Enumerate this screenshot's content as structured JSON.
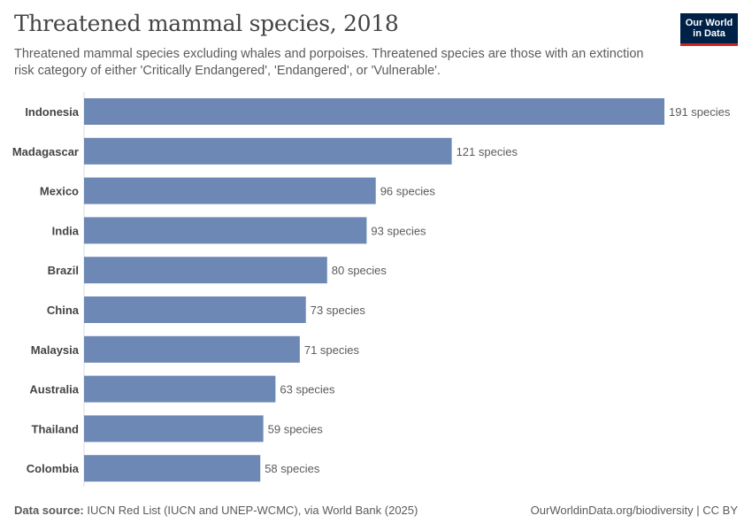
{
  "title": "Threatened mammal species, 2018",
  "subtitle": "Threatened mammal species excluding whales and porpoises. Threatened species are those with an extinction risk category of either 'Critically Endangered', 'Endangered', or 'Vulnerable'.",
  "logo": {
    "line1": "Our World",
    "line2": "in Data"
  },
  "footer": {
    "source_label": "Data source:",
    "source_text": "IUCN Red List (IUCN and UNEP-WCMC), via World Bank (2025)",
    "right_text": "OurWorldinData.org/biodiversity | CC BY"
  },
  "colors": {
    "bar": "#6d88b4",
    "label": "#444444",
    "value": "#5b5b5b",
    "axis": "#dddddd"
  },
  "chart_data": {
    "type": "bar",
    "orientation": "horizontal",
    "title": "Threatened mammal species, 2018",
    "xlabel": "",
    "ylabel": "",
    "unit": "species",
    "xlim": [
      0,
      191
    ],
    "categories": [
      "Indonesia",
      "Madagascar",
      "Mexico",
      "India",
      "Brazil",
      "China",
      "Malaysia",
      "Australia",
      "Thailand",
      "Colombia"
    ],
    "values": [
      191,
      121,
      96,
      93,
      80,
      73,
      71,
      63,
      59,
      58
    ],
    "value_labels": [
      "191 species",
      "121 species",
      "96 species",
      "93 species",
      "80 species",
      "73 species",
      "71 species",
      "63 species",
      "59 species",
      "58 species"
    ]
  }
}
